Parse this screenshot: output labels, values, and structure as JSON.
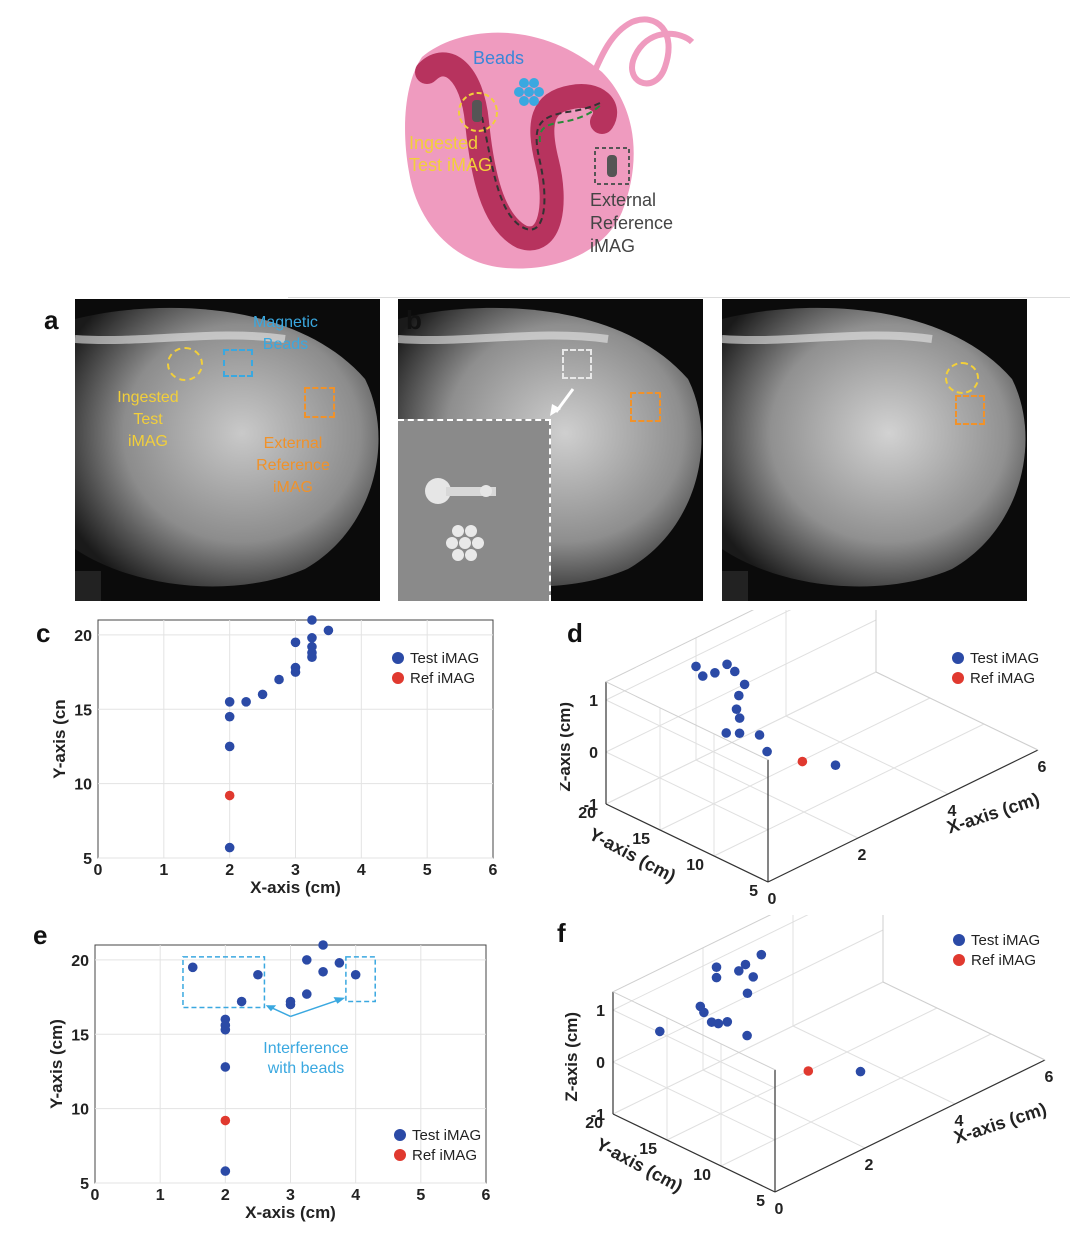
{
  "schematic": {
    "beads_label": "Beads",
    "ingested_line1": "Ingested",
    "ingested_line2": "Test iMAG",
    "external_line1": "External",
    "external_line2": "Reference",
    "external_line3": "iMAG"
  },
  "panel_letters": [
    "a",
    "b",
    "c",
    "d",
    "e",
    "f"
  ],
  "xray_a": {
    "magnetic_line1": "Magnetic",
    "magnetic_line2": "Beads",
    "ingested_line1": "Ingested",
    "ingested_line2": "Test",
    "ingested_line3": "iMAG",
    "external_line1": "External",
    "external_line2": "Reference",
    "external_line3": "iMAG"
  },
  "colors": {
    "test": "#2b4aa6",
    "ref": "#e0392f",
    "yellow": "#f2cf3a",
    "orange": "#f0922a",
    "cyan": "#3aa8e0",
    "pink": "#ef9bbf",
    "darkpink": "#b7335e"
  },
  "annotation_e": {
    "line1": "Interference",
    "line2": "with beads"
  },
  "chart_data": [
    {
      "panel": "c",
      "type": "scatter",
      "xlabel": "X-axis (cm)",
      "ylabel": "Y-axis (cn",
      "xlim": [
        0,
        6
      ],
      "ylim": [
        5,
        21
      ],
      "xticks": [
        "0",
        "1",
        "2",
        "3",
        "4",
        "5",
        "6"
      ],
      "yticks": [
        "5",
        "10",
        "15",
        "20"
      ],
      "legend": [
        "Test iMAG",
        "Ref iMAG"
      ],
      "legend_position": "top-right",
      "grid": true,
      "series": [
        {
          "name": "Test iMAG",
          "points": [
            [
              2,
              5.7
            ],
            [
              2,
              12.5
            ],
            [
              2,
              14.5
            ],
            [
              2,
              15.5
            ],
            [
              2.25,
              15.5
            ],
            [
              2.5,
              16
            ],
            [
              2.75,
              17
            ],
            [
              3,
              17.5
            ],
            [
              3,
              17.8
            ],
            [
              3,
              19.5
            ],
            [
              3.25,
              18.5
            ],
            [
              3.25,
              18.8
            ],
            [
              3.25,
              19.2
            ],
            [
              3.25,
              19.8
            ],
            [
              3.25,
              21
            ],
            [
              3.5,
              20.3
            ]
          ]
        },
        {
          "name": "Ref iMAG",
          "points": [
            [
              2,
              9.2
            ]
          ]
        }
      ]
    },
    {
      "panel": "d",
      "type": "scatter3d",
      "xlabel": "X-axis (cm)",
      "ylabel": "Y-axis (cm)",
      "zlabel": "Z-axis (cm)",
      "xticks": [
        "0",
        "2",
        "4",
        "6"
      ],
      "yticks": [
        "5",
        "10",
        "15",
        "20"
      ],
      "zticks": [
        "-1",
        "0",
        "1"
      ],
      "legend": [
        "Test iMAG",
        "Ref iMAG"
      ],
      "legend_position": "top-right",
      "grid": true,
      "series": [
        {
          "name": "Test iMAG",
          "points": [
            [
              2.0,
              20.0,
              0.8
            ],
            [
              2.15,
              20.0,
              0.55
            ],
            [
              2.3,
              19.5,
              0.6
            ],
            [
              2.45,
              19.0,
              0.75
            ],
            [
              2.55,
              18.7,
              0.6
            ],
            [
              2.6,
              18.0,
              0.4
            ],
            [
              2.4,
              17.7,
              0.3
            ],
            [
              2.3,
              17.5,
              0.1
            ],
            [
              2.25,
              17.0,
              0.0
            ],
            [
              2.0,
              17.2,
              -0.2
            ],
            [
              2.2,
              16.8,
              -0.25
            ],
            [
              2.5,
              16.2,
              -0.35
            ],
            [
              2.5,
              15.5,
              -0.6
            ],
            [
              3.3,
              12.5,
              -0.9
            ]
          ]
        },
        {
          "name": "Ref iMAG",
          "points": [
            [
              2.9,
              13.9,
              -0.8
            ]
          ]
        }
      ]
    },
    {
      "panel": "e",
      "type": "scatter",
      "xlabel": "X-axis (cm)",
      "ylabel": "Y-axis (cm)",
      "xlim": [
        0,
        6
      ],
      "ylim": [
        5,
        21
      ],
      "xticks": [
        "0",
        "1",
        "2",
        "3",
        "4",
        "5",
        "6"
      ],
      "yticks": [
        "5",
        "10",
        "15",
        "20"
      ],
      "legend": [
        "Test iMAG",
        "Ref iMAG"
      ],
      "legend_position": "bottom-right",
      "grid": true,
      "series": [
        {
          "name": "Test iMAG",
          "points": [
            [
              1.5,
              19.5
            ],
            [
              2,
              5.8
            ],
            [
              2,
              12.8
            ],
            [
              2,
              15.3
            ],
            [
              2,
              15.6
            ],
            [
              2,
              16
            ],
            [
              2.25,
              17.2
            ],
            [
              2.5,
              19
            ],
            [
              3,
              17
            ],
            [
              3,
              17.2
            ],
            [
              3.25,
              17.7
            ],
            [
              3.25,
              20
            ],
            [
              3.5,
              19.2
            ],
            [
              3.5,
              21
            ],
            [
              3.75,
              19.8
            ],
            [
              4,
              19
            ]
          ]
        },
        {
          "name": "Ref iMAG",
          "points": [
            [
              2,
              9.2
            ]
          ]
        }
      ],
      "annotation": "Interference with beads"
    },
    {
      "panel": "f",
      "type": "scatter3d",
      "xlabel": "X-axis (cm)",
      "ylabel": "Y-axis (cm)",
      "zlabel": "Z-axis (cm)",
      "xticks": [
        "0",
        "2",
        "4",
        "6"
      ],
      "yticks": [
        "5",
        "10",
        "15",
        "20"
      ],
      "zticks": [
        "-1",
        "0",
        "1"
      ],
      "legend": [
        "Test iMAG",
        "Ref iMAG"
      ],
      "legend_position": "top-right",
      "grid": true,
      "series": [
        {
          "name": "Test iMAG",
          "points": [
            [
              0.8,
              19.0,
              0.35
            ],
            [
              1.7,
              19.0,
              0.45
            ],
            [
              1.9,
              19.5,
              0.2
            ],
            [
              2.0,
              19.2,
              0.0
            ],
            [
              2.1,
              19.0,
              -0.05
            ],
            [
              2.3,
              19.0,
              -0.1
            ],
            [
              2.3,
              20.0,
              0.85
            ],
            [
              2.3,
              20.0,
              0.65
            ],
            [
              2.7,
              19.6,
              0.65
            ],
            [
              2.8,
              19.4,
              0.75
            ],
            [
              3.2,
              19.6,
              0.75
            ],
            [
              2.9,
              19.1,
              0.5
            ],
            [
              2.7,
              18.8,
              0.3
            ],
            [
              2.5,
              18.0,
              -0.35
            ],
            [
              3.7,
              12.5,
              -1.0
            ]
          ]
        },
        {
          "name": "Ref iMAG",
          "points": [
            [
              2.9,
              14.0,
              -0.8
            ]
          ]
        }
      ]
    }
  ]
}
